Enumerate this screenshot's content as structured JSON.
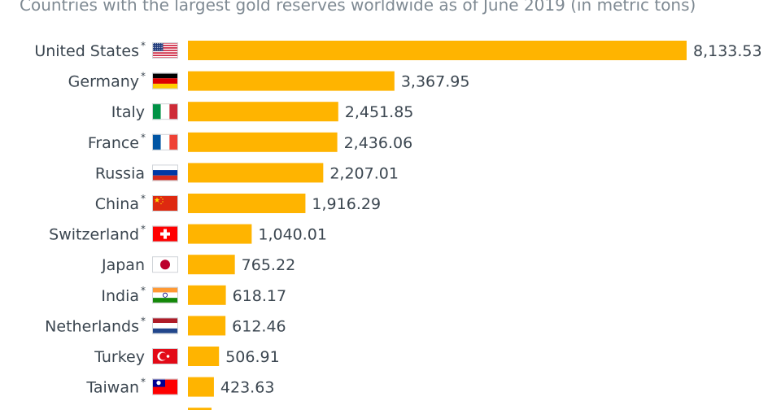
{
  "chart_data": {
    "type": "bar",
    "orientation": "horizontal",
    "subtitle": "Countries with the largest gold reserves worldwide as of June 2019 (in metric tons)",
    "categories": [
      "United States",
      "Germany",
      "Italy",
      "France",
      "Russia",
      "China",
      "Switzerland",
      "Japan",
      "India",
      "Netherlands",
      "Turkey",
      "Taiwan"
    ],
    "footnote_marks": [
      "*",
      "*",
      "",
      "*",
      "",
      "*",
      "*",
      "",
      "*",
      "*",
      "",
      "*"
    ],
    "value_labels": [
      "8,133.53",
      "3,367.95",
      "2,451.85",
      "2,436.06",
      "2,207.01",
      "1,916.29",
      "1,040.01",
      "765.22",
      "618.17",
      "612.46",
      "506.91",
      "423.63"
    ],
    "values": [
      8133.53,
      3367.95,
      2451.85,
      2436.06,
      2207.01,
      1916.29,
      1040.01,
      765.22,
      618.17,
      612.46,
      506.91,
      423.63
    ],
    "flags": [
      "us-flag-icon",
      "germany-flag-icon",
      "italy-flag-icon",
      "france-flag-icon",
      "russia-flag-icon",
      "china-flag-icon",
      "switzerland-flag-icon",
      "japan-flag-icon",
      "india-flag-icon",
      "netherlands-flag-icon",
      "turkey-flag-icon",
      "taiwan-flag-icon"
    ],
    "bar_color": "#FFB400",
    "grid": false,
    "legend": "none",
    "xlim": [
      0,
      8133.53
    ]
  }
}
